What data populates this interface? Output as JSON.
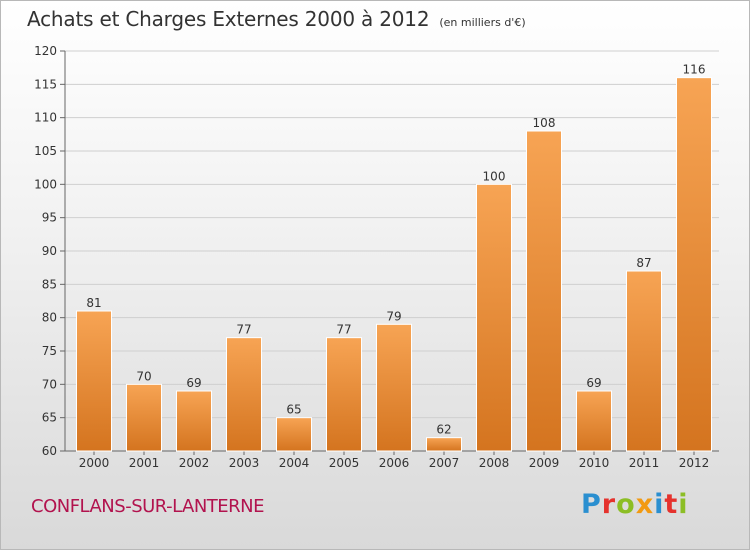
{
  "header": {
    "title": "Achats et Charges Externes 2000 à 2012",
    "subtitle": "(en milliers d'€)"
  },
  "footer": {
    "commune": "CONFLANS-SUR-LANTERNE",
    "logo_letters": [
      "P",
      "r",
      "o",
      "x",
      "i",
      "t",
      "i"
    ],
    "logo_colors": [
      "#2a8fd0",
      "#e5322d",
      "#8cbe25",
      "#f29a12",
      "#2a8fd0",
      "#e5322d",
      "#8cbe25"
    ]
  },
  "chart_data": {
    "type": "bar",
    "categories": [
      "2000",
      "2001",
      "2002",
      "2003",
      "2004",
      "2005",
      "2006",
      "2007",
      "2008",
      "2009",
      "2010",
      "2011",
      "2012"
    ],
    "values": [
      81,
      70,
      69,
      77,
      65,
      77,
      79,
      62,
      100,
      108,
      69,
      87,
      116
    ],
    "title": "Achats et Charges Externes 2000 à 2012",
    "subtitle": "(en milliers d'€)",
    "ylim": [
      60,
      120
    ],
    "yticks": [
      60,
      65,
      70,
      75,
      80,
      85,
      90,
      95,
      100,
      105,
      110,
      115,
      120
    ],
    "grid": true,
    "bar_color_light": "#f7a454",
    "bar_color_dark": "#d4741f"
  }
}
